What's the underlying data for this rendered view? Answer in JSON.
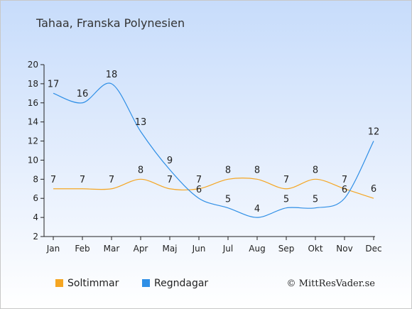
{
  "chart_data": {
    "type": "line",
    "title": "Tahaa, Franska Polynesien",
    "categories": [
      "Jan",
      "Feb",
      "Mar",
      "Apr",
      "Maj",
      "Jun",
      "Jul",
      "Aug",
      "Sep",
      "Okt",
      "Nov",
      "Dec"
    ],
    "series": [
      {
        "name": "Soltimmar",
        "color": "#f5a623",
        "values": [
          7,
          7,
          7,
          8,
          7,
          7,
          8,
          8,
          7,
          8,
          7,
          6
        ]
      },
      {
        "name": "Regndagar",
        "color": "#2f8fe6",
        "values": [
          17,
          16,
          18,
          13,
          9,
          6,
          5,
          4,
          5,
          5,
          6,
          12
        ]
      }
    ],
    "ylim": [
      2,
      20
    ],
    "yticks": [
      2,
      4,
      6,
      8,
      10,
      12,
      14,
      16,
      18,
      20
    ],
    "grid": false,
    "legend": "bottom-left"
  },
  "credit": "© MittResVader.se"
}
